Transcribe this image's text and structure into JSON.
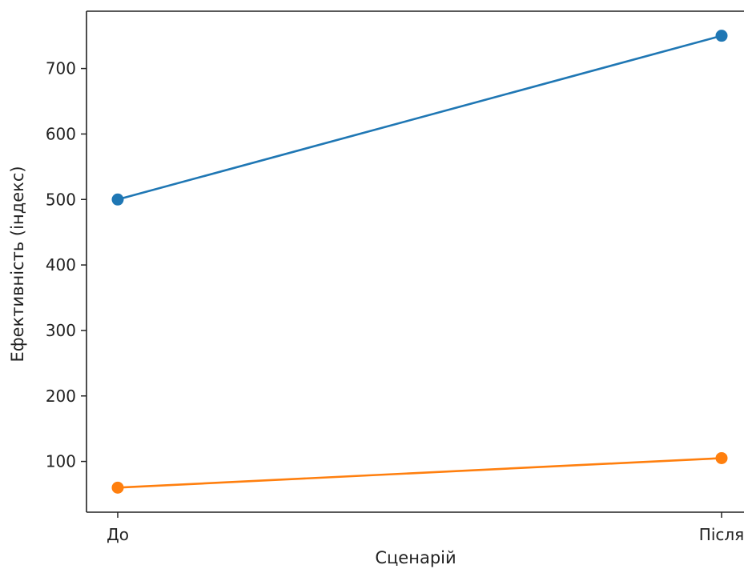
{
  "chart_data": {
    "type": "line",
    "title": "",
    "xlabel": "Сценарій",
    "ylabel": "Ефективність (індекс)",
    "categories": [
      "До",
      "Після"
    ],
    "series": [
      {
        "values": [
          500,
          750
        ],
        "color": "#1f77b4"
      },
      {
        "values": [
          60,
          105
        ],
        "color": "#ff7f0e"
      }
    ],
    "ylim": [
      22.5,
      787.5
    ],
    "yticks": [
      100,
      200,
      300,
      400,
      500,
      600,
      700
    ],
    "grid": false,
    "legend": "none",
    "marker": "circle"
  }
}
